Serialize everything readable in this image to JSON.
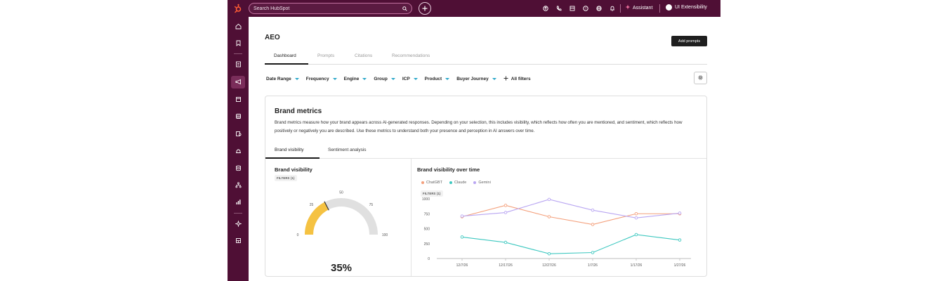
{
  "topbar": {
    "search_placeholder": "Search HubSpot",
    "assistant_label": "Assistant",
    "account_label": "UI Extensibility"
  },
  "page": {
    "title": "AEO",
    "add_prompts_label": "Add prompts",
    "tabs": [
      {
        "label": "Dashboard",
        "active": true
      },
      {
        "label": "Prompts",
        "active": false
      },
      {
        "label": "Citations",
        "active": false
      },
      {
        "label": "Recommendations",
        "active": false
      }
    ]
  },
  "filters": {
    "items": [
      "Date Range",
      "Frequency",
      "Engine",
      "Group",
      "ICP",
      "Product",
      "Buyer Journey"
    ],
    "all_filters_label": "All filters"
  },
  "brand_metrics": {
    "title": "Brand metrics",
    "description": "Brand metrics measure how your brand appears across AI-generated responses. Depending on your selection, this includes visibility, which reflects how often you are mentioned, and sentiment, which reflects how positively or negatively you are described. Use these metrics to understand both your presence and perception in AI answers over time.",
    "subtabs": [
      {
        "label": "Brand visibility",
        "active": true
      },
      {
        "label": "Sentiment analysis",
        "active": false
      }
    ]
  },
  "visibility_panel": {
    "title": "Brand visibility",
    "filters_badge": "FILTERS (1)",
    "gauge_value": 35,
    "gauge_value_label": "35%",
    "gauge_ticks": [
      "0",
      "25",
      "50",
      "75",
      "100"
    ],
    "gauge_color": "#f5c242"
  },
  "over_time_panel": {
    "title": "Brand visibility over time",
    "filters_badge": "FILTERS (1)"
  },
  "chart_data": {
    "type": "line",
    "title": "Brand visibility over time",
    "x": [
      "12/7/26",
      "12/17/26",
      "12/27/26",
      "1/7/26",
      "1/17/26",
      "1/27/26"
    ],
    "ylim": [
      0,
      1000
    ],
    "yticks": [
      0,
      250,
      500,
      750,
      1000
    ],
    "grid": false,
    "legend_position": "top-left",
    "series": [
      {
        "name": "ChatGBT",
        "color": "#f4a07c",
        "values": [
          700,
          890,
          700,
          570,
          750,
          750
        ]
      },
      {
        "name": "Claude",
        "color": "#3ec8c0",
        "values": [
          360,
          270,
          80,
          100,
          400,
          310
        ]
      },
      {
        "name": "Gemini",
        "color": "#b9a6f2",
        "values": [
          710,
          770,
          990,
          810,
          680,
          760
        ]
      }
    ]
  }
}
